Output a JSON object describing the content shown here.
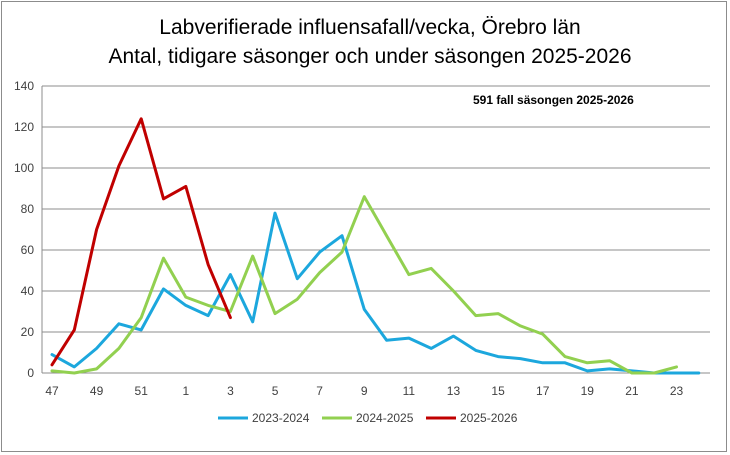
{
  "chart_data": {
    "type": "line",
    "title": "Labverifierade influensafall/vecka, Örebro län",
    "subtitle": "Antal, tidigare säsonger och under säsongen 2025-2026",
    "annotation": "591 fall säsongen 2025-2026",
    "xlabel": "",
    "ylabel": "",
    "ylim": [
      0,
      140
    ],
    "yticks": [
      0,
      20,
      40,
      60,
      80,
      100,
      120,
      140
    ],
    "weeks": [
      47,
      48,
      49,
      50,
      51,
      52,
      1,
      2,
      3,
      4,
      5,
      6,
      7,
      8,
      9,
      10,
      11,
      12,
      13,
      14,
      15,
      16,
      17,
      18,
      19,
      20,
      21,
      22,
      23,
      24
    ],
    "x_tick_labels": [
      "47",
      "49",
      "51",
      "1",
      "3",
      "5",
      "7",
      "9",
      "11",
      "13",
      "15",
      "17",
      "19",
      "21",
      "23"
    ],
    "grid": "horizontal",
    "legend_position": "bottom",
    "series": [
      {
        "name": "2023-2024",
        "color": "#1ca7dd",
        "values": [
          9,
          3,
          12,
          24,
          21,
          41,
          33,
          28,
          48,
          25,
          78,
          46,
          59,
          67,
          31,
          16,
          17,
          12,
          18,
          11,
          8,
          7,
          5,
          5,
          1,
          2,
          1,
          0,
          0,
          0
        ]
      },
      {
        "name": "2024-2025",
        "color": "#92d050",
        "values": [
          1,
          0,
          2,
          12,
          27,
          56,
          37,
          33,
          30,
          57,
          29,
          36,
          49,
          59,
          86,
          67,
          48,
          51,
          40,
          28,
          29,
          23,
          19,
          8,
          5,
          6,
          0,
          0,
          3,
          null
        ]
      },
      {
        "name": "2025-2026",
        "color": "#c00000",
        "values": [
          4,
          21,
          70,
          101,
          124,
          85,
          91,
          53,
          27,
          null,
          null,
          null,
          null,
          null,
          null,
          null,
          null,
          null,
          null,
          null,
          null,
          null,
          null,
          null,
          null,
          null,
          null,
          null,
          null,
          null
        ]
      }
    ]
  }
}
